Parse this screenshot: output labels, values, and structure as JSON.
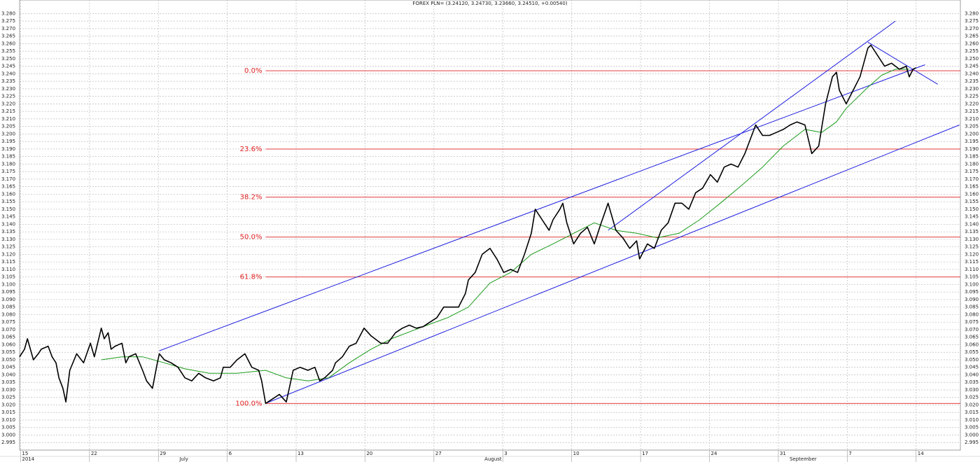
{
  "chart_data": {
    "type": "line",
    "title": "FOREX PLN= (3.24120, 3.24730, 3.23660, 3.24510, +0.00540)",
    "xlim": [
      -0.1,
      95.5
    ],
    "ylim": [
      2.99,
      3.289
    ],
    "grid": true,
    "xticks": [
      {
        "value": 0,
        "label": "15"
      },
      {
        "value": 7,
        "label": "22"
      },
      {
        "value": 14,
        "label": "29"
      },
      {
        "value": 21,
        "label": "6"
      },
      {
        "value": 28,
        "label": "13"
      },
      {
        "value": 35,
        "label": "20"
      },
      {
        "value": 42,
        "label": "27"
      },
      {
        "value": 49,
        "label": "3"
      },
      {
        "value": 56,
        "label": "10"
      },
      {
        "value": 63,
        "label": "17"
      },
      {
        "value": 70,
        "label": "24"
      },
      {
        "value": 77,
        "label": "31"
      },
      {
        "value": 84,
        "label": "7"
      },
      {
        "value": 91,
        "label": "14"
      }
    ],
    "month_labels": [
      {
        "value": 0,
        "label": "2014"
      },
      {
        "value": 16,
        "label": "July"
      },
      {
        "value": 47,
        "label": "August"
      },
      {
        "value": 78,
        "label": "September"
      }
    ],
    "yticks": [
      {
        "value": 2.995,
        "label": "2.995"
      },
      {
        "value": 3.0,
        "label": "3.000"
      },
      {
        "value": 3.005,
        "label": "3.005"
      },
      {
        "value": 3.01,
        "label": "3.010"
      },
      {
        "value": 3.015,
        "label": "3.015"
      },
      {
        "value": 3.02,
        "label": "3.020"
      },
      {
        "value": 3.025,
        "label": "3.025"
      },
      {
        "value": 3.03,
        "label": "3.030"
      },
      {
        "value": 3.035,
        "label": "3.035"
      },
      {
        "value": 3.04,
        "label": "3.040"
      },
      {
        "value": 3.045,
        "label": "3.045"
      },
      {
        "value": 3.05,
        "label": "3.050"
      },
      {
        "value": 3.055,
        "label": "3.055"
      },
      {
        "value": 3.06,
        "label": "3.060"
      },
      {
        "value": 3.065,
        "label": "3.065"
      },
      {
        "value": 3.07,
        "label": "3.070"
      },
      {
        "value": 3.075,
        "label": "3.075"
      },
      {
        "value": 3.08,
        "label": "3.080"
      },
      {
        "value": 3.085,
        "label": "3.085"
      },
      {
        "value": 3.09,
        "label": "3.090"
      },
      {
        "value": 3.095,
        "label": "3.095"
      },
      {
        "value": 3.1,
        "label": "3.100"
      },
      {
        "value": 3.105,
        "label": "3.105"
      },
      {
        "value": 3.11,
        "label": "3.110"
      },
      {
        "value": 3.115,
        "label": "3.115"
      },
      {
        "value": 3.12,
        "label": "3.120"
      },
      {
        "value": 3.125,
        "label": "3.125"
      },
      {
        "value": 3.13,
        "label": "3.130"
      },
      {
        "value": 3.135,
        "label": "3.135"
      },
      {
        "value": 3.14,
        "label": "3.140"
      },
      {
        "value": 3.145,
        "label": "3.145"
      },
      {
        "value": 3.15,
        "label": "3.150"
      },
      {
        "value": 3.155,
        "label": "3.155"
      },
      {
        "value": 3.16,
        "label": "3.160"
      },
      {
        "value": 3.165,
        "label": "3.165"
      },
      {
        "value": 3.17,
        "label": "3.170"
      },
      {
        "value": 3.175,
        "label": "3.175"
      },
      {
        "value": 3.18,
        "label": "3.180"
      },
      {
        "value": 3.185,
        "label": "3.185"
      },
      {
        "value": 3.19,
        "label": "3.190"
      },
      {
        "value": 3.195,
        "label": "3.195"
      },
      {
        "value": 3.2,
        "label": "3.200"
      },
      {
        "value": 3.205,
        "label": "3.205"
      },
      {
        "value": 3.21,
        "label": "3.210"
      },
      {
        "value": 3.215,
        "label": "3.215"
      },
      {
        "value": 3.22,
        "label": "3.220"
      },
      {
        "value": 3.225,
        "label": "3.225"
      },
      {
        "value": 3.23,
        "label": "3.230"
      },
      {
        "value": 3.235,
        "label": "3.235"
      },
      {
        "value": 3.24,
        "label": "3.240"
      },
      {
        "value": 3.245,
        "label": "3.245"
      },
      {
        "value": 3.25,
        "label": "3.250"
      },
      {
        "value": 3.255,
        "label": "3.255"
      },
      {
        "value": 3.26,
        "label": "3.260"
      },
      {
        "value": 3.265,
        "label": "3.265"
      },
      {
        "value": 3.27,
        "label": "3.270"
      },
      {
        "value": 3.275,
        "label": "3.275"
      },
      {
        "value": 3.28,
        "label": "3.280"
      }
    ],
    "series": [
      {
        "color": "#000000",
        "x": [
          -0.1,
          0.4,
          0.7,
          1.3,
          1.8,
          2.1,
          2.8,
          3.2,
          3.6,
          3.9,
          4.3,
          4.6,
          5.0,
          5.7,
          6.4,
          7.1,
          7.5,
          8.2,
          8.5,
          8.9,
          9.2,
          9.6,
          10.3,
          10.7,
          11.0,
          11.7,
          12.4,
          12.8,
          13.4,
          13.9,
          14.1,
          14.6,
          15.3,
          16.0,
          16.7,
          17.4,
          18.1,
          18.8,
          19.6,
          20.3,
          20.6,
          21.3,
          22.0,
          22.8,
          23.5,
          24.2,
          24.5,
          24.9,
          25.6,
          26.3,
          27.0,
          27.7,
          28.4,
          29.2,
          29.9,
          30.4,
          30.9,
          31.7,
          32.0,
          32.7,
          33.4,
          34.1,
          34.9,
          35.6,
          36.6,
          37.3,
          38.1,
          38.8,
          39.5,
          40.2,
          40.9,
          41.6,
          42.3,
          43.0,
          43.7,
          44.5,
          45.2,
          45.5,
          46.2,
          46.9,
          47.7,
          48.4,
          49.1,
          49.8,
          50.5,
          51.2,
          51.9,
          52.3,
          53.0,
          53.7,
          54.1,
          54.8,
          55.1,
          55.5,
          56.2,
          56.9,
          57.6,
          58.3,
          59.0,
          59.7,
          60.5,
          61.2,
          61.9,
          62.6,
          62.9,
          63.7,
          64.4,
          65.1,
          65.8,
          66.5,
          67.2,
          67.9,
          68.6,
          69.3,
          70.1,
          70.8,
          71.5,
          72.2,
          72.9,
          73.6,
          74.7,
          75.4,
          76.1,
          76.8,
          77.5,
          78.2,
          78.9,
          79.7,
          80.4,
          81.1,
          81.8,
          82.5,
          82.9,
          83.2,
          83.9,
          84.6,
          85.3,
          86.1,
          86.4,
          87.1,
          87.8,
          88.5,
          89.3,
          90.0,
          90.3,
          90.7,
          91.0
        ],
        "values": [
          3.052,
          3.057,
          3.064,
          3.05,
          3.054,
          3.057,
          3.059,
          3.052,
          3.048,
          3.038,
          3.031,
          3.022,
          3.043,
          3.054,
          3.048,
          3.061,
          3.052,
          3.071,
          3.064,
          3.068,
          3.057,
          3.059,
          3.061,
          3.048,
          3.052,
          3.054,
          3.043,
          3.036,
          3.031,
          3.048,
          3.054,
          3.05,
          3.048,
          3.045,
          3.038,
          3.036,
          3.041,
          3.038,
          3.036,
          3.038,
          3.045,
          3.045,
          3.05,
          3.054,
          3.045,
          3.043,
          3.036,
          3.021,
          3.024,
          3.027,
          3.022,
          3.043,
          3.045,
          3.043,
          3.045,
          3.036,
          3.038,
          3.043,
          3.048,
          3.052,
          3.059,
          3.061,
          3.071,
          3.066,
          3.061,
          3.061,
          3.068,
          3.071,
          3.073,
          3.071,
          3.072,
          3.075,
          3.078,
          3.085,
          3.085,
          3.085,
          3.094,
          3.103,
          3.108,
          3.12,
          3.124,
          3.117,
          3.108,
          3.11,
          3.108,
          3.12,
          3.134,
          3.15,
          3.143,
          3.136,
          3.143,
          3.15,
          3.154,
          3.141,
          3.127,
          3.134,
          3.138,
          3.127,
          3.141,
          3.154,
          3.136,
          3.131,
          3.124,
          3.129,
          3.117,
          3.127,
          3.124,
          3.136,
          3.141,
          3.154,
          3.154,
          3.15,
          3.161,
          3.164,
          3.173,
          3.168,
          3.178,
          3.18,
          3.178,
          3.187,
          3.206,
          3.199,
          3.199,
          3.201,
          3.203,
          3.206,
          3.208,
          3.206,
          3.187,
          3.192,
          3.22,
          3.238,
          3.241,
          3.229,
          3.22,
          3.229,
          3.238,
          3.257,
          3.259,
          3.252,
          3.245,
          3.247,
          3.243,
          3.245,
          3.238,
          3.243,
          3.244
        ]
      },
      {
        "color": "#1a9a1a",
        "x": [
          8.2,
          10.3,
          12.4,
          14.6,
          16.7,
          19.2,
          22.0,
          24.9,
          27.0,
          29.2,
          31.3,
          33.4,
          35.6,
          37.7,
          40.5,
          43.4,
          45.5,
          47.7,
          49.8,
          51.9,
          54.1,
          56.2,
          58.3,
          60.5,
          62.6,
          64.7,
          66.9,
          69.0,
          71.1,
          73.3,
          75.4,
          77.5,
          79.7,
          81.4,
          82.9,
          83.9,
          86.1,
          87.5,
          88.9,
          90.3
        ],
        "values": [
          3.05,
          3.052,
          3.052,
          3.048,
          3.044,
          3.041,
          3.041,
          3.043,
          3.038,
          3.036,
          3.038,
          3.048,
          3.057,
          3.064,
          3.071,
          3.078,
          3.085,
          3.101,
          3.108,
          3.12,
          3.127,
          3.134,
          3.141,
          3.136,
          3.134,
          3.131,
          3.134,
          3.143,
          3.154,
          3.166,
          3.178,
          3.192,
          3.203,
          3.201,
          3.208,
          3.217,
          3.231,
          3.239,
          3.243,
          3.243
        ]
      }
    ],
    "trend_color": "#2020e0",
    "trend_lines": [
      {
        "x": [
          14.1,
          91.9
        ],
        "values": [
          3.056,
          3.246
        ]
      },
      {
        "x": [
          24.9,
          95.4
        ],
        "values": [
          3.021,
          3.206
        ]
      },
      {
        "x": [
          59.7,
          88.9
        ],
        "values": [
          3.136,
          3.275
        ]
      },
      {
        "x": [
          86.1,
          93.2
        ],
        "values": [
          3.261,
          3.233
        ]
      }
    ],
    "fib_color": "#e02020",
    "fib_start": 24.9,
    "fib_levels": [
      {
        "label": "0.0%",
        "value": 3.242
      },
      {
        "label": "23.6%",
        "value": 3.19
      },
      {
        "label": "38.2%",
        "value": 3.158
      },
      {
        "label": "50.0%",
        "value": 3.1315
      },
      {
        "label": "61.8%",
        "value": 3.105
      },
      {
        "label": "100.0%",
        "value": 3.021
      }
    ]
  }
}
